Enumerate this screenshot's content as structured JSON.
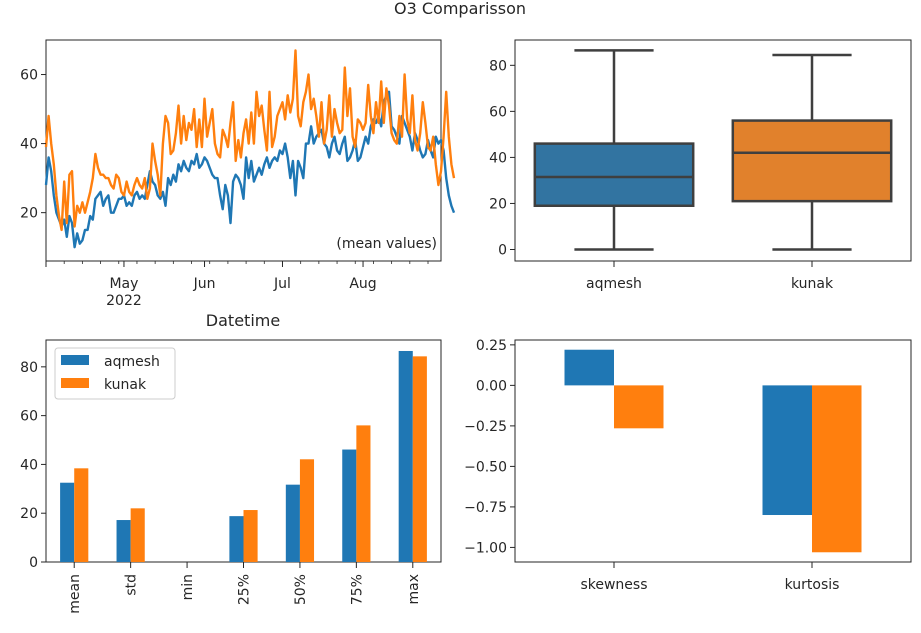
{
  "figure": {
    "suptitle": "O3 Comparisson"
  },
  "colors": {
    "aqmesh": "#1f77b4",
    "kunak": "#ff7f0e",
    "box_aqmesh": "#3274a1",
    "box_kunak": "#e1812c",
    "box_line": "#3f3f3f"
  },
  "chart_data": [
    {
      "type": "line",
      "title": "",
      "xlabel": "Datetime",
      "ylabel": "",
      "annotation": "(mean values)",
      "x_range": [
        "2022-04-01",
        "2022-08-31"
      ],
      "ylim": [
        6,
        70
      ],
      "yticks": [
        20,
        40,
        60
      ],
      "xtick_labels": [
        {
          "date": "2022-05-01",
          "label": "May",
          "sublabel": "2022"
        },
        {
          "date": "2022-06-01",
          "label": "Jun",
          "sublabel": ""
        },
        {
          "date": "2022-07-01",
          "label": "Jul",
          "sublabel": ""
        },
        {
          "date": "2022-08-01",
          "label": "Aug",
          "sublabel": ""
        }
      ],
      "series": [
        {
          "name": "aqmesh",
          "start": "2022-04-01",
          "values": [
            28,
            36,
            32,
            25,
            20,
            18,
            16,
            18,
            13,
            19,
            17,
            10,
            14,
            11,
            12,
            15,
            15,
            19,
            18,
            24,
            25,
            26,
            22,
            24,
            25,
            20,
            20,
            22,
            24,
            24,
            25,
            22,
            23,
            22,
            25,
            26,
            24,
            25,
            24,
            28,
            32,
            29,
            28,
            25,
            24,
            26,
            22,
            30,
            28,
            31,
            29,
            34,
            32,
            35,
            33,
            32,
            35,
            34,
            37,
            33,
            34,
            36,
            35,
            33,
            31,
            30,
            30,
            25,
            21,
            28,
            25,
            17,
            29,
            31,
            30,
            28,
            24,
            36,
            30,
            35,
            29,
            31,
            33,
            31,
            34,
            36,
            33,
            35,
            36,
            35,
            38,
            37,
            40,
            36,
            30,
            35,
            25,
            35,
            33,
            30,
            40,
            40,
            45,
            40,
            42,
            43,
            44,
            40,
            39,
            36,
            40,
            42,
            38,
            37,
            40,
            42,
            35,
            36,
            38,
            41,
            35,
            36,
            39,
            42,
            40,
            45,
            47,
            46,
            48,
            45,
            52,
            54,
            55,
            45,
            44,
            42,
            40,
            48,
            46,
            44,
            42,
            38,
            43,
            41,
            38,
            36,
            37,
            41,
            38,
            36,
            42,
            40,
            41,
            38,
            30,
            25,
            22,
            20
          ]
        },
        {
          "name": "kunak",
          "start": "2022-04-01",
          "values": [
            39,
            48,
            40,
            34,
            25,
            19,
            15,
            29,
            17,
            31,
            32,
            16,
            22,
            20,
            23,
            20,
            23,
            26,
            30,
            37,
            33,
            31,
            31,
            30,
            30,
            28,
            27,
            31,
            30,
            26,
            25,
            29,
            26,
            25,
            28,
            30,
            28,
            27,
            30,
            24,
            27,
            40,
            35,
            31,
            25,
            40,
            48,
            46,
            37,
            38,
            43,
            51,
            40,
            48,
            41,
            46,
            44,
            50,
            39,
            47,
            39,
            53,
            42,
            46,
            50,
            40,
            37,
            36,
            44,
            42,
            39,
            46,
            52,
            35,
            41,
            36,
            43,
            47,
            40,
            49,
            40,
            55,
            48,
            51,
            44,
            38,
            55,
            39,
            42,
            48,
            50,
            52,
            47,
            54,
            49,
            53,
            67,
            48,
            45,
            52,
            55,
            60,
            50,
            53,
            48,
            42,
            52,
            40,
            44,
            54,
            42,
            50,
            46,
            43,
            44,
            62,
            48,
            56,
            42,
            39,
            47,
            46,
            44,
            46,
            57,
            48,
            43,
            52,
            46,
            58,
            46,
            56,
            51,
            43,
            41,
            40,
            48,
            42,
            60,
            47,
            43,
            54,
            41,
            38,
            43,
            52,
            46,
            39,
            38,
            42,
            34,
            28,
            32,
            42,
            55,
            42,
            34,
            30
          ]
        }
      ]
    },
    {
      "type": "box",
      "xlabel": "",
      "ylabel": "",
      "categories": [
        "aqmesh",
        "kunak"
      ],
      "ylim": [
        -5,
        91
      ],
      "yticks": [
        0,
        20,
        40,
        60,
        80
      ],
      "boxes": [
        {
          "name": "aqmesh",
          "min": 0,
          "q1": 19,
          "median": 31.5,
          "q3": 46,
          "max": 86.5
        },
        {
          "name": "kunak",
          "min": 0,
          "q1": 21,
          "median": 42,
          "q3": 56,
          "max": 84.5
        }
      ]
    },
    {
      "type": "bar",
      "xlabel": "",
      "ylabel": "",
      "categories": [
        "mean",
        "std",
        "min",
        "25%",
        "50%",
        "75%",
        "max"
      ],
      "ylim": [
        0,
        91
      ],
      "yticks": [
        0,
        20,
        40,
        60,
        80
      ],
      "legend": "top-left",
      "series": [
        {
          "name": "aqmesh",
          "values": [
            32.5,
            17.2,
            0,
            18.8,
            31.7,
            46.1,
            86.5
          ]
        },
        {
          "name": "kunak",
          "values": [
            38.4,
            22.0,
            0,
            21.3,
            42.1,
            56.0,
            84.3
          ]
        }
      ]
    },
    {
      "type": "bar",
      "xlabel": "",
      "ylabel": "",
      "categories": [
        "skewness",
        "kurtosis"
      ],
      "ylim": [
        -1.09,
        0.28
      ],
      "yticks": [
        0.25,
        0.0,
        -0.25,
        -0.5,
        -0.75,
        -1.0
      ],
      "ytick_labels": [
        "0.25",
        "0.00",
        "−0.25",
        "−0.50",
        "−0.75",
        "−1.00"
      ],
      "series": [
        {
          "name": "aqmesh",
          "values": [
            0.22,
            -0.8
          ]
        },
        {
          "name": "kunak",
          "values": [
            -0.265,
            -1.03
          ]
        }
      ]
    }
  ]
}
